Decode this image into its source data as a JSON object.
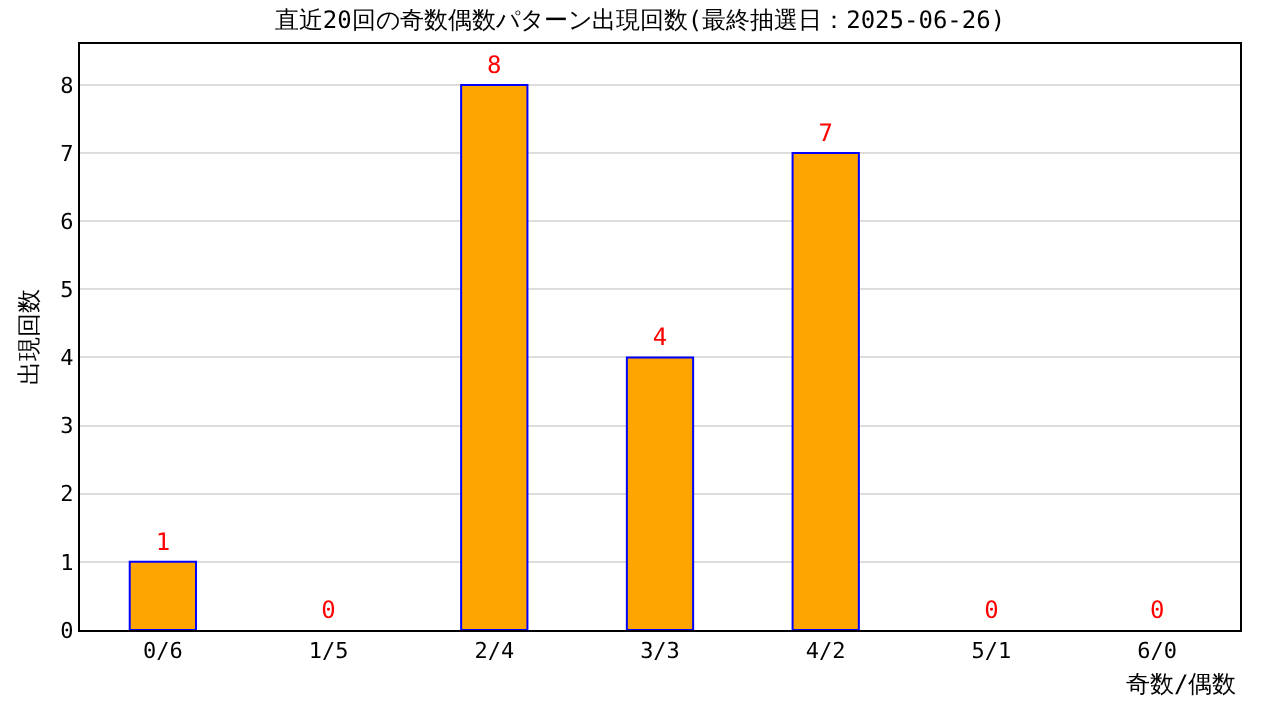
{
  "chart_data": {
    "type": "bar",
    "title": "直近20回の奇数偶数パターン出現回数(最終抽選日：2025-06-26)",
    "categories": [
      "0/6",
      "1/5",
      "2/4",
      "3/3",
      "4/2",
      "5/1",
      "6/0"
    ],
    "values": [
      1,
      0,
      8,
      4,
      7,
      0,
      0
    ],
    "color": "#ffa500",
    "xlabel": "奇数/偶数",
    "ylabel": "出現回数",
    "ylim": [
      0,
      8.6
    ],
    "yticks": [
      0,
      1,
      2,
      3,
      4,
      5,
      6,
      7,
      8
    ],
    "grid": "y",
    "data_labels": true,
    "legend": false
  }
}
